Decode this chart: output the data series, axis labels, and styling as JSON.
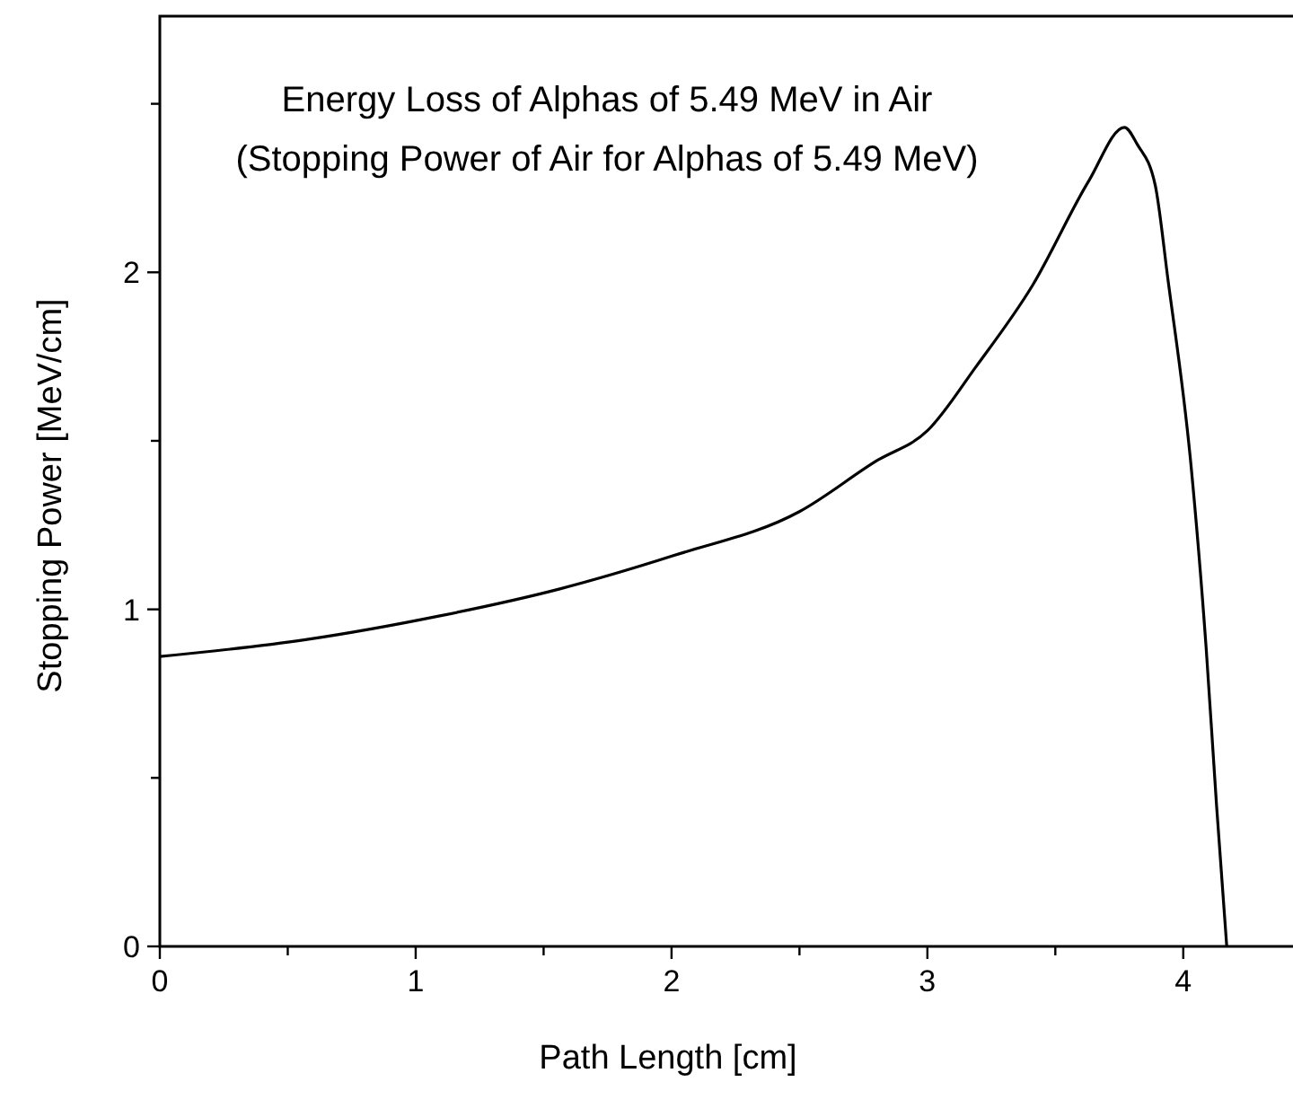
{
  "chart_data": {
    "type": "line",
    "title": "Energy Loss of Alphas of 5.49 MeV in Air",
    "subtitle": "(Stopping Power of Air for Alphas of 5.49 MeV)",
    "xlabel": "Path Length [cm]",
    "ylabel": "Stopping Power [MeV/cm]",
    "xlim": [
      0,
      4.45
    ],
    "ylim": [
      0,
      2.76
    ],
    "xticks": [
      0,
      {
        "value": 0.5,
        "label": null
      },
      1,
      {
        "value": 1.5,
        "label": null
      },
      2,
      {
        "value": 2.5,
        "label": null
      },
      3,
      {
        "value": 3.5,
        "label": null
      },
      4
    ],
    "yticks": [
      0,
      {
        "value": 0.5,
        "label": null
      },
      1,
      {
        "value": 1.5,
        "label": null
      },
      2,
      {
        "value": 2.5,
        "label": null
      }
    ],
    "grid": false,
    "marker": "none",
    "line_style": "solid",
    "series": [
      {
        "color": "#000000",
        "x": [
          0,
          0.57,
          1.09,
          1.56,
          2.01,
          2.5,
          2.8,
          3.0,
          3.19,
          3.41,
          3.63,
          3.77,
          3.82,
          3.89,
          3.94,
          4.03,
          4.09,
          4.13,
          4.17
        ],
        "values": [
          0.86,
          0.91,
          0.98,
          1.06,
          1.16,
          1.29,
          1.44,
          1.53,
          1.72,
          1.96,
          2.27,
          2.43,
          2.38,
          2.26,
          1.98,
          1.43,
          0.88,
          0.42,
          0
        ]
      }
    ]
  }
}
